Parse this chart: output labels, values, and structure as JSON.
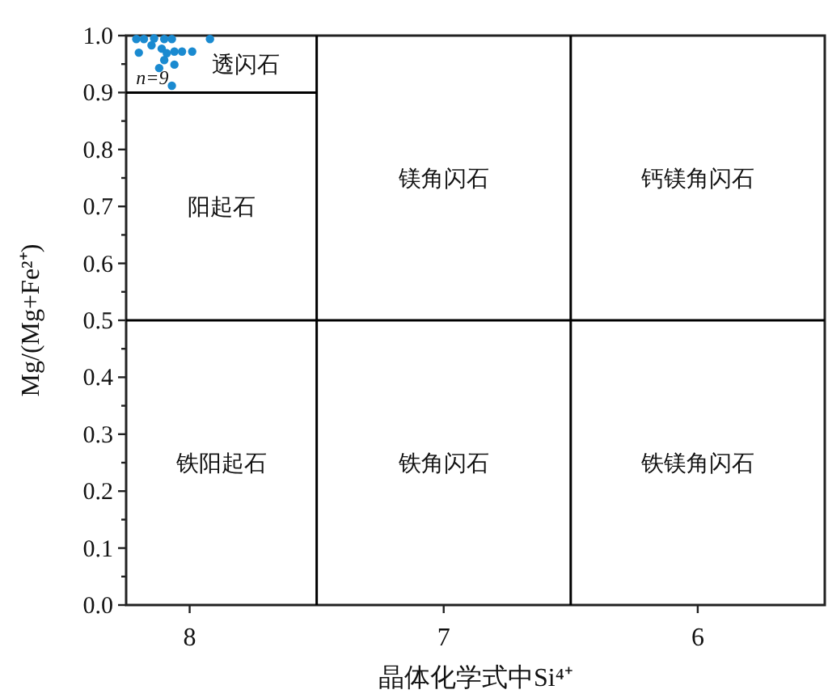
{
  "chart_data": {
    "type": "scatter",
    "xlabel": "晶体化学式中Si⁴⁺",
    "ylabel": "Mg/(Mg+Fe²⁺)",
    "xlim": [
      8.25,
      5.5
    ],
    "xticks": [
      8,
      7,
      6
    ],
    "ylim": [
      0,
      1
    ],
    "yticks": [
      {
        "value": 0,
        "label": "0.0"
      },
      {
        "value": 0.05,
        "label": null
      },
      {
        "value": 0.1,
        "label": "0.1"
      },
      {
        "value": 0.15,
        "label": null
      },
      {
        "value": 0.2,
        "label": "0.2"
      },
      {
        "value": 0.25,
        "label": null
      },
      {
        "value": 0.3,
        "label": "0.3"
      },
      {
        "value": 0.35,
        "label": null
      },
      {
        "value": 0.4,
        "label": "0.4"
      },
      {
        "value": 0.45,
        "label": null
      },
      {
        "value": 0.5,
        "label": "0.5"
      },
      {
        "value": 0.55,
        "label": null
      },
      {
        "value": 0.6,
        "label": "0.6"
      },
      {
        "value": 0.65,
        "label": null
      },
      {
        "value": 0.7,
        "label": "0.7"
      },
      {
        "value": 0.75,
        "label": null
      },
      {
        "value": 0.8,
        "label": "0.8"
      },
      {
        "value": 0.85,
        "label": null
      },
      {
        "value": 0.9,
        "label": "0.9"
      },
      {
        "value": 0.95,
        "label": null
      },
      {
        "value": 1,
        "label": "1.0"
      }
    ],
    "grid": false,
    "series": [
      {
        "marker": "circle",
        "color": "#1a8ad0",
        "x": [
          7.92,
          8.21,
          8.18,
          8.14,
          8.1,
          8.07,
          8.2,
          8.15,
          8.11,
          8.09,
          8.06,
          8.03,
          7.99,
          8.1,
          8.06,
          8.12,
          8.07
        ],
        "values": [
          0.994,
          0.994,
          0.994,
          0.995,
          0.994,
          0.994,
          0.97,
          0.983,
          0.977,
          0.969,
          0.972,
          0.972,
          0.972,
          0.957,
          0.949,
          0.943,
          0.912
        ]
      },
      {
        "type": "line",
        "marker": "none",
        "color": "#000000",
        "x": [
          8.25,
          7.5
        ],
        "values": [
          0.9,
          0.9
        ]
      }
    ],
    "ref_lines": [
      {
        "axis": "x",
        "value": 7.5,
        "color": "#000000"
      },
      {
        "axis": "x",
        "value": 6.5,
        "color": "#000000"
      },
      {
        "axis": "y",
        "value": 0.5,
        "color": "#000000"
      }
    ],
    "annotations": [
      "透闪石",
      "阳起石",
      "镁角闪石",
      "钙镁角闪石",
      "铁阳起石",
      "铁角闪石",
      "铁镁角闪石",
      {
        "text": "n=9",
        "x": 8.07,
        "y": 0.912
      }
    ]
  }
}
